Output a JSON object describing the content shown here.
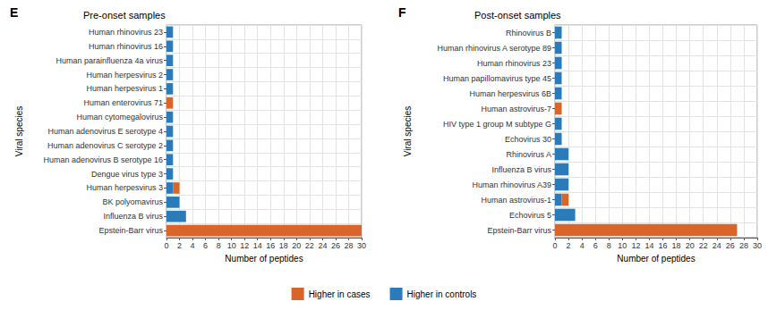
{
  "chart_data": [
    {
      "type": "bar",
      "panel_label": "E",
      "title": "Pre-onset samples",
      "x_label": "Number of peptides",
      "y_label": "Viral species",
      "orientation": "horizontal",
      "stacked": true,
      "grid": true,
      "legend": "bottom",
      "categories": [
        "Human rhinovirus 23",
        "Human rhinovirus 16",
        "Human parainfluenza 4a virus",
        "Human herpesvirus 2",
        "Human herpesvirus 1",
        "Human enterovirus 71",
        "Human cytomegalovirus",
        "Human adenovirus E serotype 4",
        "Human adenovirus C serotype 2",
        "Human adenovirus B serotype 16",
        "Dengue virus type 3",
        "Human herpesvirus 3",
        "BK polyomavirus",
        "Influenza B virus",
        "Epstein-Barr virus"
      ],
      "series": [
        {
          "name": "Higher in cases",
          "color": "#d9652b",
          "values": [
            0,
            0,
            0,
            0,
            0,
            1,
            0,
            0,
            0,
            0,
            0,
            1,
            0,
            0,
            30
          ]
        },
        {
          "name": "Higher in controls",
          "color": "#2b7bba",
          "values": [
            1,
            1,
            1,
            1,
            1,
            0,
            1,
            1,
            1,
            1,
            1,
            1,
            2,
            3,
            0
          ]
        }
      ],
      "xlim": [
        0,
        30
      ],
      "xticks": [
        0,
        2,
        4,
        6,
        8,
        10,
        12,
        14,
        16,
        18,
        20,
        22,
        24,
        26,
        28,
        30
      ]
    },
    {
      "type": "bar",
      "panel_label": "F",
      "title": "Post-onset samples",
      "x_label": "Number of peptides",
      "y_label": "Viral species",
      "orientation": "horizontal",
      "stacked": true,
      "grid": true,
      "legend": "bottom",
      "categories": [
        "Rhinovirus B",
        "Human rhinovirus A serotype 89",
        "Human rhinovirus 23",
        "Human papillomavirus type 45",
        "Human herpesvirus 6B",
        "Human astrovirus-7",
        "HIV type 1 group M subtype G",
        "Echovirus 30",
        "Rhinovirus A",
        "Influenza B virus",
        "Human rhinovirus A39",
        "Human astrovirus-1",
        "Echovirus 5",
        "Epstein-Barr virus"
      ],
      "series": [
        {
          "name": "Higher in cases",
          "color": "#d9652b",
          "values": [
            0,
            0,
            0,
            0,
            0,
            1,
            0,
            0,
            0,
            0,
            0,
            1,
            0,
            27
          ]
        },
        {
          "name": "Higher in controls",
          "color": "#2b7bba",
          "values": [
            1,
            1,
            1,
            1,
            1,
            0,
            1,
            1,
            2,
            2,
            2,
            1,
            3,
            0
          ]
        }
      ],
      "xlim": [
        0,
        30
      ],
      "xticks": [
        0,
        2,
        4,
        6,
        8,
        10,
        12,
        14,
        16,
        18,
        20,
        22,
        24,
        26,
        28,
        30
      ]
    }
  ]
}
